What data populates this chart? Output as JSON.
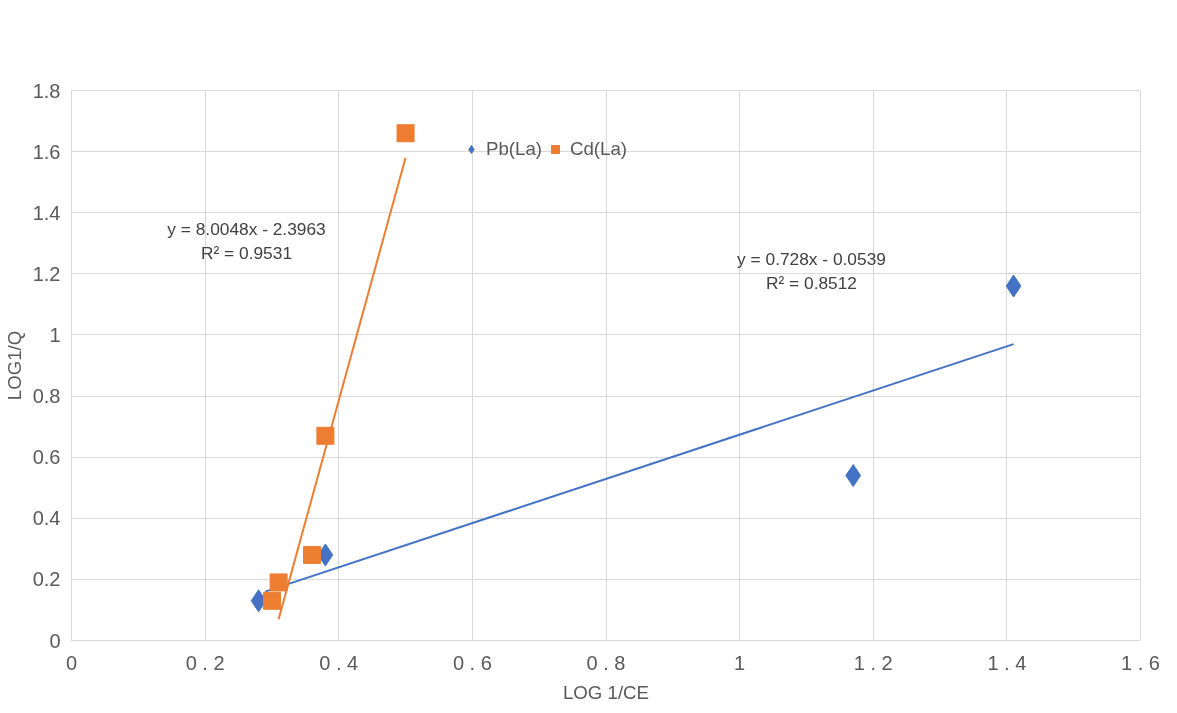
{
  "chart_data": {
    "type": "scatter",
    "xlabel": "LOG 1/CE",
    "ylabel": "LOG1/Q",
    "xlim": [
      0,
      1.6
    ],
    "xticks": [
      0,
      0.2,
      0.4,
      0.6,
      0.8,
      1,
      1.2,
      1.4,
      1.6
    ],
    "ylim": [
      0,
      1.8
    ],
    "yticks": [
      0,
      0.2,
      0.4,
      0.6,
      0.8,
      1,
      1.2,
      1.4,
      1.6,
      1.8
    ],
    "grid": true,
    "legend": "top",
    "series": [
      {
        "name": "Pb(La)",
        "color": "#4472c4",
        "marker": "diamond",
        "x": [
          0.28,
          0.38,
          1.17,
          1.41
        ],
        "values": [
          0.13,
          0.28,
          0.54,
          1.16
        ]
      },
      {
        "name": "Cd(La)",
        "color": "#ed7d31",
        "marker": "square",
        "x": [
          0.3,
          0.31,
          0.36,
          0.38,
          0.5
        ],
        "values": [
          0.13,
          0.19,
          0.28,
          0.67,
          1.66
        ]
      },
      {
        "type": "line",
        "color": "#4472c4",
        "marker": "none",
        "x": [
          0.29,
          1.41
        ],
        "values": [
          0.16,
          0.97
        ]
      },
      {
        "type": "line",
        "color": "#ed7d31",
        "marker": "none",
        "x": [
          0.31,
          0.5
        ],
        "values": [
          0.07,
          1.58
        ]
      }
    ],
    "annotations": [
      "y = 8.0048x - 2.3963\nR² = 0.9531",
      "y = 0.728x - 0.0539\nR² = 0.8512"
    ]
  }
}
